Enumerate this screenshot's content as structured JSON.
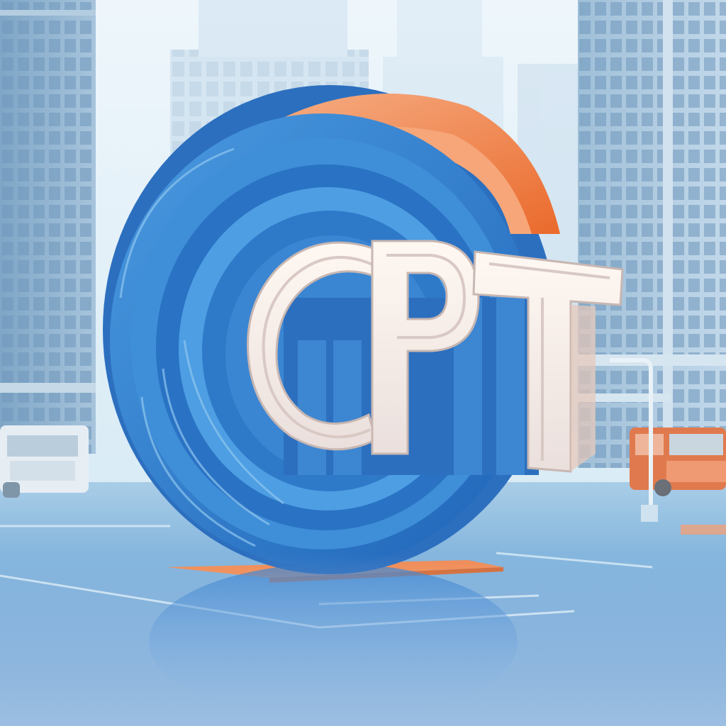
{
  "scene": {
    "logo_text": "CPT",
    "logo_kind": "3d-sculpture",
    "setting": "city-plaza"
  },
  "colors": {
    "sky_top": "#eef6fb",
    "sky_bottom": "#cfe6f3",
    "building_near": "#8fb3cf",
    "building_far": "#bfd7e8",
    "ring_blue": "#2f7fd0",
    "ring_blue_light": "#66b0ea",
    "ring_orange": "#f08a4b",
    "letter_face": "#f6ebe6",
    "letter_side": "#2e6fba",
    "floor": "#6fa7d6",
    "truck_left": "#e6eef4",
    "truck_right": "#e07a4e"
  }
}
